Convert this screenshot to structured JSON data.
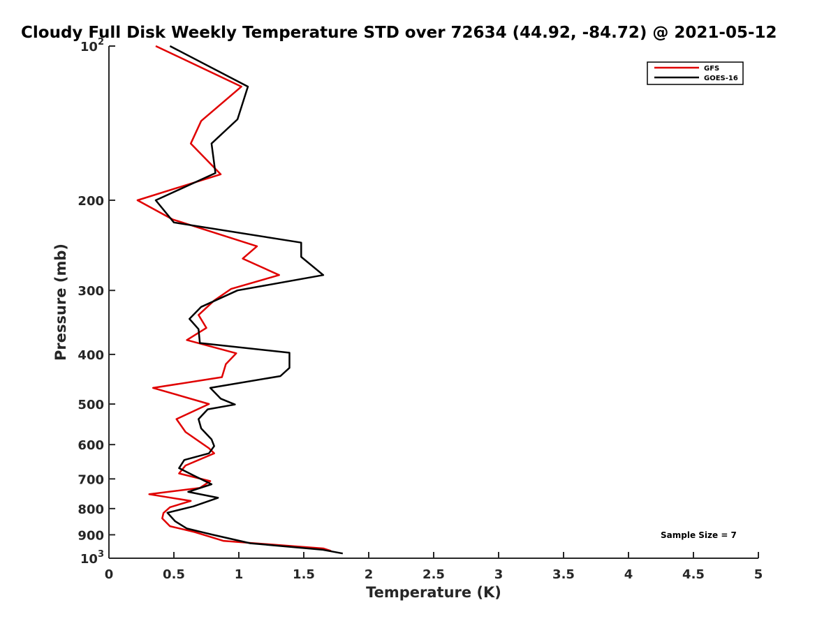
{
  "chart_data": {
    "type": "line",
    "title": "Cloudy Full Disk Weekly Temperature STD over 72634 (44.92, -84.72) @ 2021-05-12",
    "xlabel": "Temperature (K)",
    "ylabel": "Pressure (mb)",
    "xlim": [
      0,
      5
    ],
    "ylim": [
      100,
      1000
    ],
    "y_scale": "log",
    "y_reversed": true,
    "grid": false,
    "legend_position": "top-right",
    "x_ticks": [
      {
        "value": 0,
        "label": "0"
      },
      {
        "value": 0.5,
        "label": "0.5"
      },
      {
        "value": 1,
        "label": "1"
      },
      {
        "value": 1.5,
        "label": "1.5"
      },
      {
        "value": 2,
        "label": "2"
      },
      {
        "value": 2.5,
        "label": "2.5"
      },
      {
        "value": 3,
        "label": "3"
      },
      {
        "value": 3.5,
        "label": "3.5"
      },
      {
        "value": 4,
        "label": "4"
      },
      {
        "value": 4.5,
        "label": "4.5"
      },
      {
        "value": 5,
        "label": "5"
      }
    ],
    "y_ticks": [
      {
        "value": 100,
        "base": "10",
        "exp": "2"
      },
      {
        "value": 200,
        "base": "200",
        "exp": ""
      },
      {
        "value": 300,
        "base": "300",
        "exp": ""
      },
      {
        "value": 400,
        "base": "400",
        "exp": ""
      },
      {
        "value": 500,
        "base": "500",
        "exp": ""
      },
      {
        "value": 600,
        "base": "600",
        "exp": ""
      },
      {
        "value": 700,
        "base": "700",
        "exp": ""
      },
      {
        "value": 800,
        "base": "800",
        "exp": ""
      },
      {
        "value": 900,
        "base": "900",
        "exp": ""
      },
      {
        "value": 1000,
        "base": "10",
        "exp": "3"
      }
    ],
    "series": [
      {
        "name": "GFS",
        "color": "#e00000",
        "points": [
          [
            0.36,
            100
          ],
          [
            1.02,
            120
          ],
          [
            0.71,
            140
          ],
          [
            0.63,
            155
          ],
          [
            0.86,
            178
          ],
          [
            0.22,
            200
          ],
          [
            0.49,
            218
          ],
          [
            1.14,
            246
          ],
          [
            1.03,
            260
          ],
          [
            1.31,
            280
          ],
          [
            0.94,
            298
          ],
          [
            0.81,
            314
          ],
          [
            0.69,
            335
          ],
          [
            0.75,
            355
          ],
          [
            0.6,
            375
          ],
          [
            0.98,
            398
          ],
          [
            0.9,
            418
          ],
          [
            0.87,
            443
          ],
          [
            0.34,
            465
          ],
          [
            0.77,
            500
          ],
          [
            0.52,
            535
          ],
          [
            0.59,
            567
          ],
          [
            0.77,
            610
          ],
          [
            0.81,
            624
          ],
          [
            0.59,
            659
          ],
          [
            0.54,
            683
          ],
          [
            0.78,
            707
          ],
          [
            0.7,
            729
          ],
          [
            0.31,
            750
          ],
          [
            0.63,
            773
          ],
          [
            0.47,
            795
          ],
          [
            0.42,
            816
          ],
          [
            0.41,
            836
          ],
          [
            0.47,
            866
          ],
          [
            0.66,
            889
          ],
          [
            0.88,
            925
          ],
          [
            1.65,
            957
          ],
          [
            1.71,
            968
          ]
        ]
      },
      {
        "name": "GOES-16",
        "color": "#000000",
        "points": [
          [
            0.47,
            100
          ],
          [
            1.07,
            120
          ],
          [
            0.99,
            139
          ],
          [
            0.79,
            155
          ],
          [
            0.82,
            177
          ],
          [
            0.36,
            200
          ],
          [
            0.5,
            221
          ],
          [
            1.48,
            242
          ],
          [
            1.48,
            258
          ],
          [
            1.65,
            280
          ],
          [
            0.99,
            300
          ],
          [
            0.71,
            323
          ],
          [
            0.62,
            341
          ],
          [
            0.69,
            357
          ],
          [
            0.7,
            380
          ],
          [
            1.39,
            397
          ],
          [
            1.39,
            425
          ],
          [
            1.32,
            441
          ],
          [
            0.78,
            465
          ],
          [
            0.86,
            488
          ],
          [
            0.97,
            501
          ],
          [
            0.76,
            512
          ],
          [
            0.69,
            535
          ],
          [
            0.71,
            558
          ],
          [
            0.79,
            586
          ],
          [
            0.81,
            604
          ],
          [
            0.77,
            624
          ],
          [
            0.58,
            643
          ],
          [
            0.54,
            667
          ],
          [
            0.65,
            689
          ],
          [
            0.79,
            717
          ],
          [
            0.61,
            742
          ],
          [
            0.84,
            762
          ],
          [
            0.65,
            792
          ],
          [
            0.45,
            815
          ],
          [
            0.51,
            847
          ],
          [
            0.6,
            875
          ],
          [
            0.8,
            900
          ],
          [
            1.09,
            935
          ],
          [
            1.64,
            962
          ],
          [
            1.8,
            979
          ]
        ]
      }
    ],
    "annotation": "Sample Size = 7"
  }
}
